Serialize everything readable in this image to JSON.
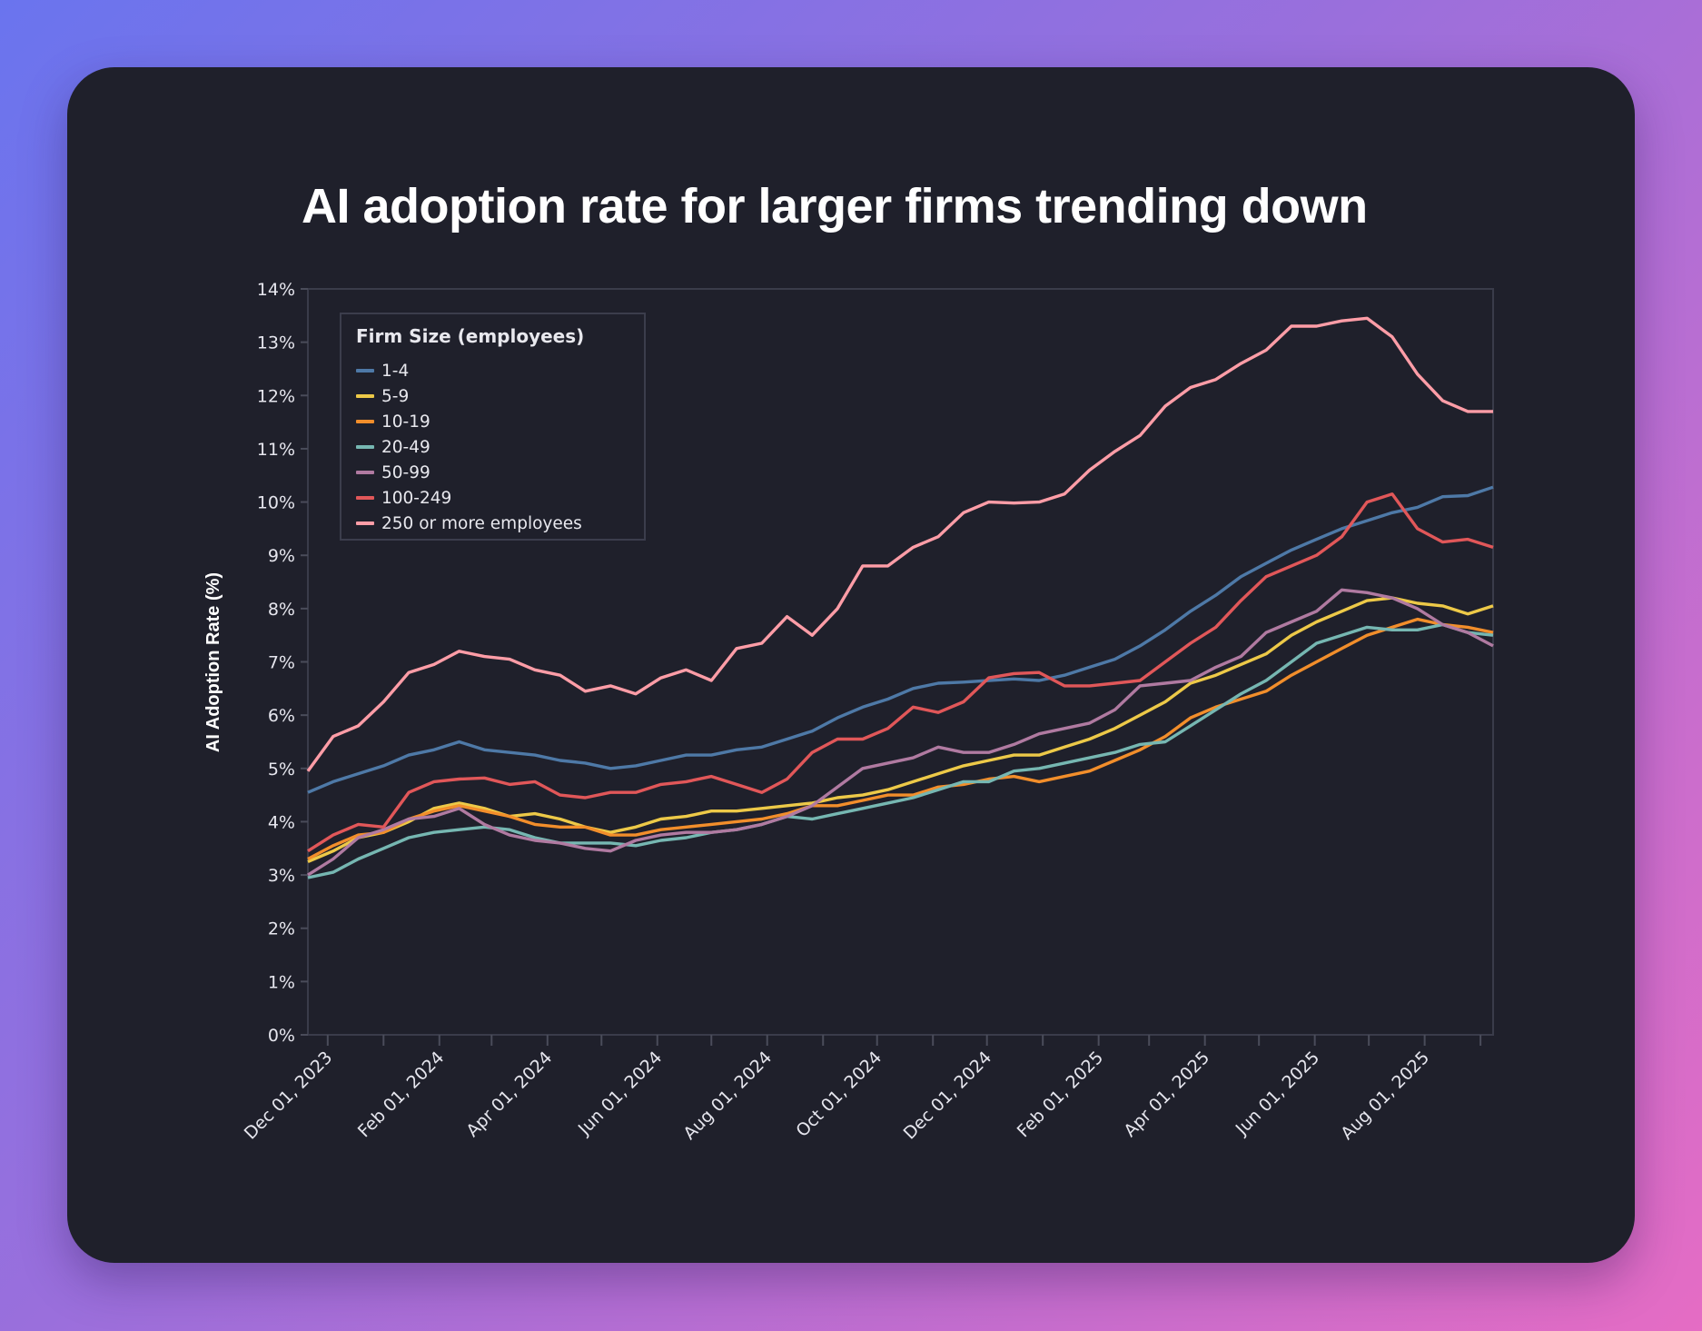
{
  "title": "AI adoption rate for larger firms trending down",
  "chart_data": {
    "type": "line",
    "title": "AI adoption rate for larger firms trending down",
    "xlabel": "",
    "ylabel": "AI Adoption Rate (%)",
    "ylim": [
      0,
      14
    ],
    "y_ticks": [
      "0%",
      "1%",
      "2%",
      "3%",
      "4%",
      "5%",
      "6%",
      "7%",
      "8%",
      "9%",
      "10%",
      "11%",
      "12%",
      "13%",
      "14%"
    ],
    "x_range": [
      "2023-11-20",
      "2025-09-08"
    ],
    "x_ticks": [
      {
        "date": "2023-12-01",
        "label": "Dec 01, 2023"
      },
      {
        "date": "2024-02-01",
        "label": "Feb 01, 2024"
      },
      {
        "date": "2024-04-01",
        "label": "Apr 01, 2024"
      },
      {
        "date": "2024-06-01",
        "label": "Jun 01, 2024"
      },
      {
        "date": "2024-08-01",
        "label": "Aug 01, 2024"
      },
      {
        "date": "2024-10-01",
        "label": "Oct 01, 2024"
      },
      {
        "date": "2024-12-01",
        "label": "Dec 01, 2024"
      },
      {
        "date": "2025-02-01",
        "label": "Feb 01, 2025"
      },
      {
        "date": "2025-04-01",
        "label": "Apr 01, 2025"
      },
      {
        "date": "2025-06-01",
        "label": "Jun 01, 2025"
      },
      {
        "date": "2025-08-01",
        "label": "Aug 01, 2025"
      }
    ],
    "minor_ticks": "monthly",
    "grid": false,
    "legend": {
      "title": "Firm Size (employees)",
      "placement": "top-left"
    },
    "x": [
      "2023-11-20",
      "2023-12-04",
      "2023-12-18",
      "2024-01-01",
      "2024-01-15",
      "2024-01-29",
      "2024-02-12",
      "2024-02-26",
      "2024-03-11",
      "2024-03-25",
      "2024-04-08",
      "2024-04-22",
      "2024-05-06",
      "2024-05-20",
      "2024-06-03",
      "2024-06-17",
      "2024-07-01",
      "2024-07-15",
      "2024-07-29",
      "2024-08-12",
      "2024-08-26",
      "2024-09-09",
      "2024-09-23",
      "2024-10-07",
      "2024-10-21",
      "2024-11-04",
      "2024-11-18",
      "2024-12-02",
      "2024-12-16",
      "2024-12-30",
      "2025-01-13",
      "2025-01-27",
      "2025-02-10",
      "2025-02-24",
      "2025-03-10",
      "2025-03-24",
      "2025-04-07",
      "2025-04-21",
      "2025-05-05",
      "2025-05-19",
      "2025-06-02",
      "2025-06-16",
      "2025-06-30",
      "2025-07-14",
      "2025-07-28",
      "2025-08-11",
      "2025-08-25",
      "2025-09-08"
    ],
    "series": [
      {
        "name": "1-4",
        "color": "#4e79a7",
        "values": [
          4.55,
          4.75,
          4.9,
          5.05,
          5.25,
          5.35,
          5.5,
          5.35,
          5.3,
          5.25,
          5.15,
          5.1,
          5.0,
          5.05,
          5.15,
          5.25,
          5.25,
          5.35,
          5.4,
          5.55,
          5.7,
          5.95,
          6.15,
          6.3,
          6.5,
          6.6,
          6.62,
          6.65,
          6.68,
          6.65,
          6.75,
          6.9,
          7.05,
          7.3,
          7.6,
          7.95,
          8.25,
          8.6,
          8.85,
          9.1,
          9.3,
          9.5,
          9.65,
          9.8,
          9.9,
          10.1,
          10.12,
          10.28
        ]
      },
      {
        "name": "5-9",
        "color": "#edc948",
        "values": [
          3.25,
          3.45,
          3.7,
          3.8,
          4.0,
          4.25,
          4.35,
          4.25,
          4.1,
          4.15,
          4.05,
          3.9,
          3.8,
          3.9,
          4.05,
          4.1,
          4.2,
          4.2,
          4.25,
          4.3,
          4.35,
          4.45,
          4.5,
          4.6,
          4.75,
          4.9,
          5.05,
          5.15,
          5.25,
          5.25,
          5.4,
          5.55,
          5.75,
          6.0,
          6.25,
          6.6,
          6.75,
          6.95,
          7.15,
          7.5,
          7.75,
          7.95,
          8.15,
          8.2,
          8.1,
          8.05,
          7.9,
          8.05
        ]
      },
      {
        "name": "10-19",
        "color": "#f28e2b",
        "values": [
          3.3,
          3.55,
          3.75,
          3.8,
          4.05,
          4.2,
          4.3,
          4.2,
          4.1,
          3.95,
          3.9,
          3.9,
          3.75,
          3.75,
          3.85,
          3.9,
          3.95,
          4.0,
          4.05,
          4.15,
          4.3,
          4.3,
          4.4,
          4.5,
          4.5,
          4.65,
          4.7,
          4.8,
          4.85,
          4.75,
          4.85,
          4.95,
          5.15,
          5.35,
          5.6,
          5.95,
          6.15,
          6.3,
          6.45,
          6.75,
          7.0,
          7.25,
          7.5,
          7.65,
          7.8,
          7.7,
          7.65,
          7.55
        ]
      },
      {
        "name": "20-49",
        "color": "#76b7b2",
        "values": [
          2.95,
          3.05,
          3.3,
          3.5,
          3.7,
          3.8,
          3.85,
          3.9,
          3.85,
          3.7,
          3.6,
          3.6,
          3.6,
          3.55,
          3.65,
          3.7,
          3.8,
          3.85,
          3.95,
          4.1,
          4.05,
          4.15,
          4.25,
          4.35,
          4.45,
          4.6,
          4.75,
          4.75,
          4.95,
          5.0,
          5.1,
          5.2,
          5.3,
          5.45,
          5.5,
          5.8,
          6.1,
          6.4,
          6.65,
          7.0,
          7.35,
          7.5,
          7.65,
          7.6,
          7.6,
          7.7,
          7.55,
          7.5
        ]
      },
      {
        "name": "50-99",
        "color": "#b07aa1",
        "values": [
          3.0,
          3.3,
          3.7,
          3.85,
          4.05,
          4.1,
          4.25,
          3.95,
          3.75,
          3.65,
          3.6,
          3.5,
          3.45,
          3.65,
          3.75,
          3.8,
          3.8,
          3.85,
          3.95,
          4.1,
          4.3,
          4.65,
          5.0,
          5.1,
          5.2,
          5.4,
          5.3,
          5.3,
          5.45,
          5.65,
          5.75,
          5.85,
          6.1,
          6.55,
          6.6,
          6.65,
          6.9,
          7.1,
          7.55,
          7.75,
          7.95,
          8.35,
          8.3,
          8.2,
          8.0,
          7.7,
          7.55,
          7.3
        ]
      },
      {
        "name": "100-249",
        "color": "#e15759",
        "values": [
          3.45,
          3.75,
          3.95,
          3.9,
          4.55,
          4.75,
          4.8,
          4.82,
          4.7,
          4.75,
          4.5,
          4.45,
          4.55,
          4.55,
          4.7,
          4.75,
          4.85,
          4.7,
          4.55,
          4.8,
          5.3,
          5.55,
          5.55,
          5.75,
          6.15,
          6.05,
          6.25,
          6.7,
          6.78,
          6.8,
          6.55,
          6.55,
          6.6,
          6.65,
          7.0,
          7.35,
          7.65,
          8.15,
          8.6,
          8.8,
          9.0,
          9.35,
          10.0,
          10.15,
          9.5,
          9.25,
          9.3,
          9.15
        ]
      },
      {
        "name": "250 or more employees",
        "color": "#ff9da7",
        "values": [
          4.95,
          5.6,
          5.8,
          6.25,
          6.8,
          6.95,
          7.2,
          7.1,
          7.05,
          6.85,
          6.75,
          6.45,
          6.55,
          6.4,
          6.7,
          6.85,
          6.65,
          7.25,
          7.35,
          7.85,
          7.5,
          8.0,
          8.8,
          8.8,
          9.15,
          9.35,
          9.8,
          10.0,
          9.98,
          10.0,
          10.15,
          10.6,
          10.95,
          11.25,
          11.8,
          12.15,
          12.3,
          12.6,
          12.85,
          13.3,
          13.3,
          13.4,
          13.45,
          13.1,
          12.4,
          11.9,
          11.7,
          11.7
        ]
      }
    ]
  }
}
